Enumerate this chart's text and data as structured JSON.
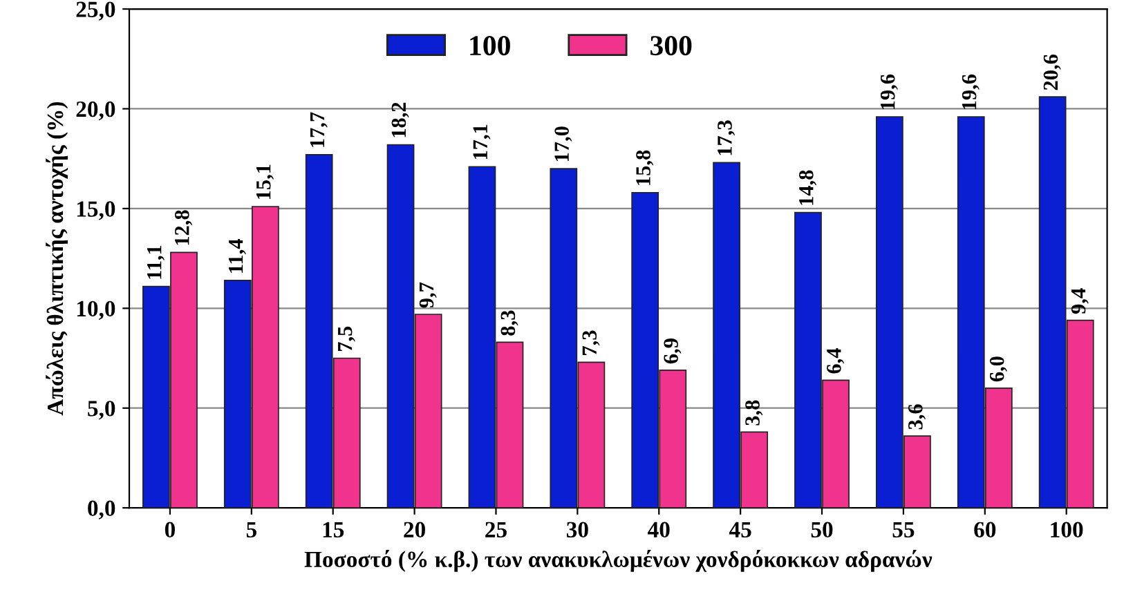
{
  "chart_data": {
    "type": "bar",
    "xlabel": "Ποσοστό (% κ.β.) των ανακυκλωμένων χονδρόκοκκων αδρανών",
    "ylabel": "Απώλεις θλιπτικής αντοχής (%)",
    "categories": [
      "0",
      "5",
      "15",
      "20",
      "25",
      "30",
      "40",
      "45",
      "50",
      "55",
      "60",
      "100"
    ],
    "series": [
      {
        "name": "100",
        "color": "#0a1ed2",
        "values": [
          11.1,
          11.4,
          17.7,
          18.2,
          17.1,
          17.0,
          15.8,
          17.3,
          14.8,
          19.6,
          19.6,
          20.6
        ],
        "value_labels": [
          "11,1",
          "11,4",
          "17,7",
          "18,2",
          "17,1",
          "17,0",
          "15,8",
          "17,3",
          "14,8",
          "19,6",
          "19,6",
          "20,6"
        ]
      },
      {
        "name": "300",
        "color": "#f0338c",
        "values": [
          12.8,
          15.1,
          7.5,
          9.7,
          8.3,
          7.3,
          6.9,
          3.8,
          6.4,
          3.6,
          6.0,
          9.4
        ],
        "value_labels": [
          "12,8",
          "15,1",
          "7,5",
          "9,7",
          "8,3",
          "7,3",
          "6,9",
          "3,8",
          "6,4",
          "3,6",
          "6,0",
          "9,4"
        ]
      }
    ],
    "ylim": [
      0,
      25
    ],
    "yticks": [
      {
        "value": 0,
        "label": "0,0"
      },
      {
        "value": 5,
        "label": "5,0"
      },
      {
        "value": 10,
        "label": "10,0"
      },
      {
        "value": 15,
        "label": "15,0"
      },
      {
        "value": 20,
        "label": "20,0"
      },
      {
        "value": 25,
        "label": "25,0"
      }
    ],
    "grid": "y",
    "legend": "top"
  }
}
